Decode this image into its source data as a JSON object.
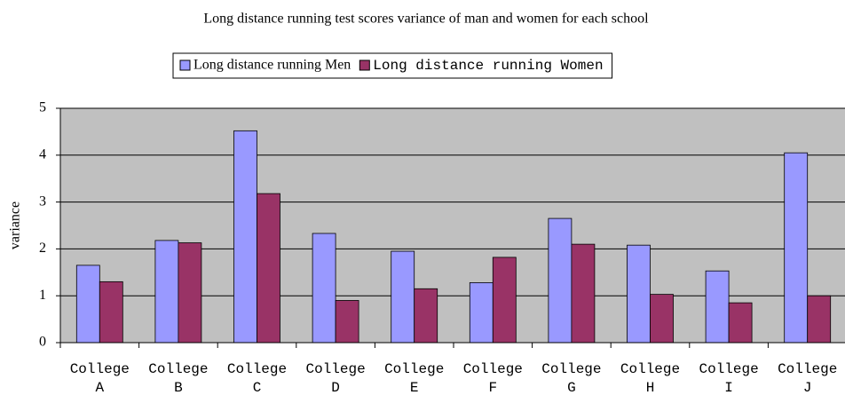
{
  "chart_data": {
    "type": "bar",
    "title": "Long distance running test scores variance of man and women for each school",
    "ylabel": "variance",
    "categories": [
      "College A",
      "College B",
      "College C",
      "College D",
      "College E",
      "College F",
      "College G",
      "College H",
      "College I",
      "College J"
    ],
    "series": [
      {
        "name": "Long distance running Men",
        "color": "#9999ff",
        "values": [
          1.65,
          2.18,
          4.52,
          2.33,
          1.95,
          1.28,
          2.65,
          2.08,
          1.53,
          4.05
        ]
      },
      {
        "name": "Long distance running Women",
        "color": "#993366",
        "values": [
          1.3,
          2.13,
          3.18,
          0.9,
          1.15,
          1.82,
          2.1,
          1.03,
          0.85,
          1.0
        ]
      }
    ],
    "ylim": [
      0,
      5
    ],
    "yticks": [
      0,
      1,
      2,
      3,
      4,
      5
    ],
    "grid": true,
    "legend": "top"
  }
}
